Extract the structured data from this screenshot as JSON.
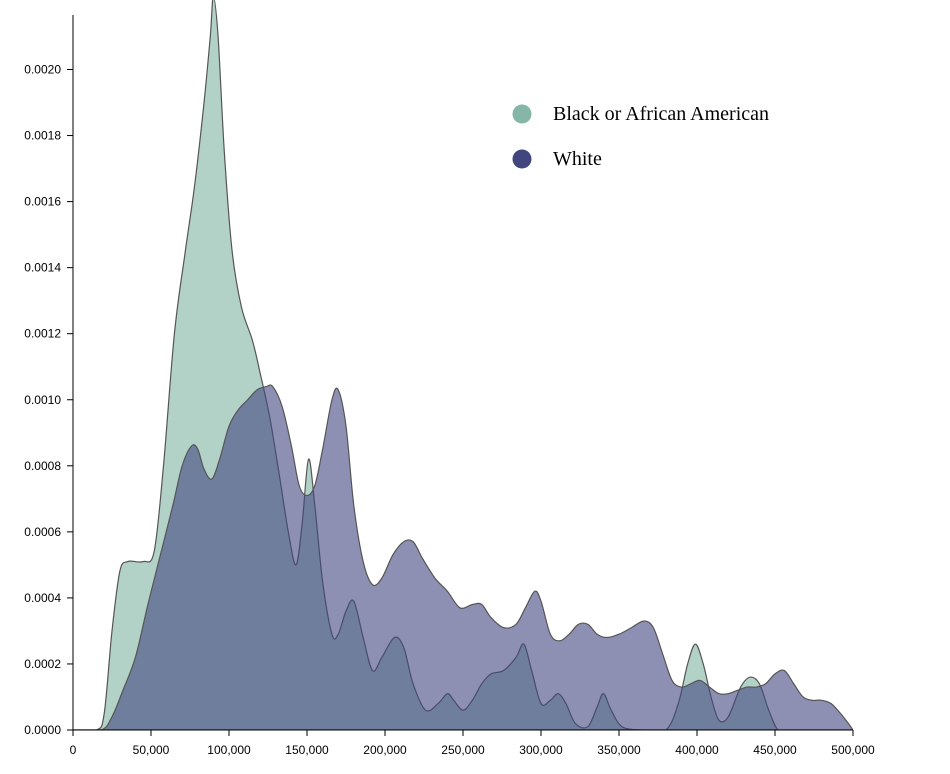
{
  "chart_data": {
    "type": "area",
    "title": "",
    "xlabel": "",
    "ylabel": "",
    "xlim": [
      0,
      500000
    ],
    "ylim": [
      0,
      0.0021
    ],
    "x_ticks": [
      0,
      50000,
      100000,
      150000,
      200000,
      250000,
      300000,
      350000,
      400000,
      450000,
      500000
    ],
    "x_tick_labels": [
      "0",
      "50,000",
      "100,000",
      "150,000",
      "200,000",
      "250,000",
      "300,000",
      "350,000",
      "400,000",
      "450,000",
      "500,000"
    ],
    "y_ticks": [
      0,
      0.0002,
      0.0004,
      0.0006,
      0.0008,
      0.001,
      0.0012,
      0.0014,
      0.0016,
      0.0018,
      0.002
    ],
    "y_tick_labels": [
      "0.0000",
      "0.0002",
      "0.0004",
      "0.0006",
      "0.0008",
      "0.0010",
      "0.0012",
      "0.0014",
      "0.0016",
      "0.0018",
      "0.0020"
    ],
    "grid": false,
    "legend_position": "top-right",
    "series": [
      {
        "name": "Black or African American",
        "color": "#7fb2a2",
        "opacity": 0.6,
        "points": [
          [
            0,
            0
          ],
          [
            15000,
            0.0
          ],
          [
            20000,
            5e-05
          ],
          [
            25000,
            0.0003
          ],
          [
            30000,
            0.00048
          ],
          [
            35000,
            0.00051
          ],
          [
            45000,
            0.00051
          ],
          [
            52000,
            0.00054
          ],
          [
            58000,
            0.0008
          ],
          [
            65000,
            0.0012
          ],
          [
            72000,
            0.00145
          ],
          [
            78000,
            0.00165
          ],
          [
            84000,
            0.0019
          ],
          [
            88000,
            0.0021
          ],
          [
            90000,
            0.00222
          ],
          [
            93000,
            0.0021
          ],
          [
            97000,
            0.00175
          ],
          [
            102000,
            0.00145
          ],
          [
            108000,
            0.00128
          ],
          [
            115000,
            0.00118
          ],
          [
            120000,
            0.00108
          ],
          [
            126000,
            0.00095
          ],
          [
            132000,
            0.00078
          ],
          [
            138000,
            0.0006
          ],
          [
            143000,
            0.0005
          ],
          [
            147000,
            0.00063
          ],
          [
            151000,
            0.00082
          ],
          [
            155000,
            0.00068
          ],
          [
            160000,
            0.00045
          ],
          [
            166000,
            0.00029
          ],
          [
            170000,
            0.00029
          ],
          [
            175000,
            0.00036
          ],
          [
            180000,
            0.00039
          ],
          [
            186000,
            0.00028
          ],
          [
            192000,
            0.00018
          ],
          [
            198000,
            0.00022
          ],
          [
            206000,
            0.00028
          ],
          [
            212000,
            0.00025
          ],
          [
            218000,
            0.00014
          ],
          [
            226000,
            6e-05
          ],
          [
            234000,
            8e-05
          ],
          [
            240000,
            0.00011
          ],
          [
            244000,
            9e-05
          ],
          [
            250000,
            6e-05
          ],
          [
            256000,
            9e-05
          ],
          [
            262000,
            0.00014
          ],
          [
            268000,
            0.00017
          ],
          [
            276000,
            0.00018
          ],
          [
            284000,
            0.00022
          ],
          [
            289000,
            0.00026
          ],
          [
            294000,
            0.00018
          ],
          [
            300000,
            8e-05
          ],
          [
            306000,
            9e-05
          ],
          [
            311000,
            0.00011
          ],
          [
            316000,
            8e-05
          ],
          [
            322000,
            2e-05
          ],
          [
            330000,
            1e-05
          ],
          [
            336000,
            7e-05
          ],
          [
            340000,
            0.00011
          ],
          [
            345000,
            6e-05
          ],
          [
            352000,
            1e-05
          ],
          [
            365000,
            0.0
          ],
          [
            380000,
            0.0
          ],
          [
            388000,
            8e-05
          ],
          [
            394000,
            0.0002
          ],
          [
            399000,
            0.00026
          ],
          [
            404000,
            0.0002
          ],
          [
            409000,
            0.0001
          ],
          [
            414000,
            3e-05
          ],
          [
            420000,
            4e-05
          ],
          [
            428000,
            0.00013
          ],
          [
            434000,
            0.00016
          ],
          [
            440000,
            0.00014
          ],
          [
            446000,
            6e-05
          ],
          [
            452000,
            0.0
          ],
          [
            460000,
            0.0
          ],
          [
            500000,
            0.0
          ]
        ]
      },
      {
        "name": "White",
        "color": "#41467f",
        "opacity": 0.6,
        "points": [
          [
            0,
            0
          ],
          [
            18000,
            0.0
          ],
          [
            25000,
            4e-05
          ],
          [
            32000,
            0.00012
          ],
          [
            40000,
            0.00022
          ],
          [
            48000,
            0.00038
          ],
          [
            56000,
            0.00053
          ],
          [
            64000,
            0.00068
          ],
          [
            70000,
            0.0008
          ],
          [
            76000,
            0.00086
          ],
          [
            80000,
            0.00085
          ],
          [
            84000,
            0.00079
          ],
          [
            89000,
            0.00076
          ],
          [
            94000,
            0.00082
          ],
          [
            100000,
            0.00092
          ],
          [
            106000,
            0.00097
          ],
          [
            112000,
            0.001
          ],
          [
            118000,
            0.00103
          ],
          [
            124000,
            0.00104
          ],
          [
            128000,
            0.00104
          ],
          [
            134000,
            0.00098
          ],
          [
            140000,
            0.00086
          ],
          [
            145000,
            0.00074
          ],
          [
            150000,
            0.00071
          ],
          [
            155000,
            0.00074
          ],
          [
            160000,
            0.00085
          ],
          [
            166000,
            0.001
          ],
          [
            170000,
            0.00103
          ],
          [
            175000,
            0.00092
          ],
          [
            180000,
            0.00068
          ],
          [
            186000,
            0.00051
          ],
          [
            192000,
            0.00044
          ],
          [
            198000,
            0.00046
          ],
          [
            205000,
            0.00053
          ],
          [
            212000,
            0.00057
          ],
          [
            218000,
            0.00057
          ],
          [
            224000,
            0.00052
          ],
          [
            232000,
            0.00046
          ],
          [
            240000,
            0.00042
          ],
          [
            248000,
            0.00037
          ],
          [
            256000,
            0.00038
          ],
          [
            262000,
            0.00038
          ],
          [
            268000,
            0.00034
          ],
          [
            276000,
            0.00031
          ],
          [
            284000,
            0.00032
          ],
          [
            290000,
            0.00037
          ],
          [
            296000,
            0.00042
          ],
          [
            300000,
            0.00039
          ],
          [
            306000,
            0.00029
          ],
          [
            312000,
            0.00027
          ],
          [
            318000,
            0.00029
          ],
          [
            324000,
            0.00032
          ],
          [
            330000,
            0.00032
          ],
          [
            336000,
            0.00029
          ],
          [
            342000,
            0.00028
          ],
          [
            350000,
            0.00029
          ],
          [
            358000,
            0.00031
          ],
          [
            366000,
            0.00033
          ],
          [
            372000,
            0.00031
          ],
          [
            378000,
            0.00023
          ],
          [
            384000,
            0.00015
          ],
          [
            390000,
            0.00013
          ],
          [
            396000,
            0.00014
          ],
          [
            402000,
            0.00015
          ],
          [
            408000,
            0.00013
          ],
          [
            414000,
            0.00011
          ],
          [
            420000,
            0.00011
          ],
          [
            426000,
            0.00012
          ],
          [
            432000,
            0.00013
          ],
          [
            438000,
            0.00013
          ],
          [
            444000,
            0.00014
          ],
          [
            450000,
            0.00017
          ],
          [
            456000,
            0.00018
          ],
          [
            462000,
            0.00014
          ],
          [
            468000,
            0.0001
          ],
          [
            474000,
            9e-05
          ],
          [
            480000,
            9e-05
          ],
          [
            486000,
            8e-05
          ],
          [
            492000,
            5e-05
          ],
          [
            497000,
            2e-05
          ],
          [
            500000,
            0.0
          ]
        ]
      }
    ]
  }
}
